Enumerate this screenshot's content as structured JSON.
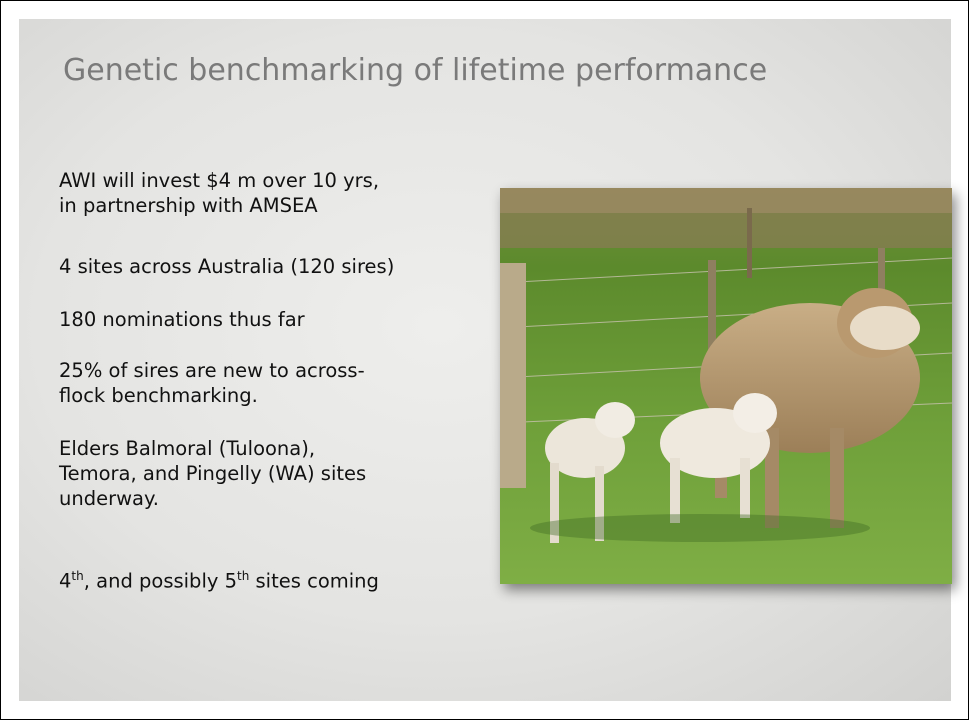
{
  "slide": {
    "title": "Genetic benchmarking of lifetime performance",
    "paragraphs": [
      [
        "AWI will invest $4 m over 10 yrs,",
        "in partnership with AMSEA"
      ],
      [
        "4 sites across Australia (120 sires)"
      ],
      [
        "180 nominations thus far"
      ],
      [
        "25% of sires are new to across-",
        "flock benchmarking."
      ],
      [
        "Elders Balmoral (Tuloona),",
        "Temora, and Pingelly (WA) sites",
        "underway."
      ]
    ],
    "last_line": [
      "4",
      "th",
      ", and possibly 5",
      "th",
      " sites coming"
    ]
  }
}
